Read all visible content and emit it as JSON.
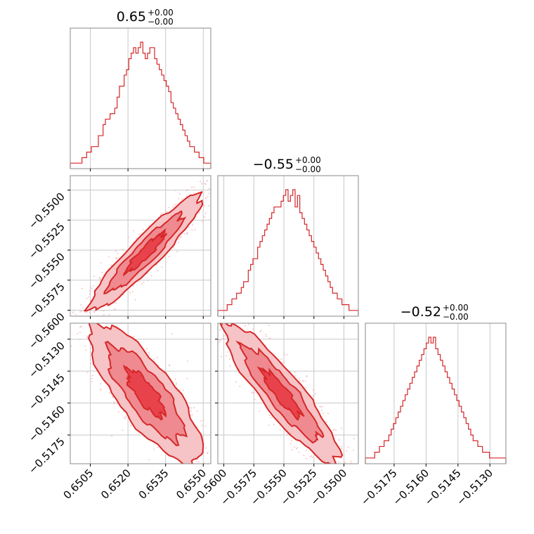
{
  "colors": {
    "series": "#d62728",
    "fill_dark": "#e8434d",
    "fill_mid": "#ee8a90",
    "fill_light": "#f6c3c6",
    "scatter": "#f4b7bb",
    "grid": "#c8c8c8",
    "frame": "#8a8a8a"
  },
  "chart_data": {
    "type": "corner",
    "parameters": [
      {
        "title": {
          "main": "0.65",
          "upper": "+0.00",
          "lower": "−0.00"
        },
        "range": [
          0.6497,
          0.6553
        ],
        "ticks": [
          0.6505,
          0.652,
          0.6535,
          0.655
        ],
        "tick_labels": [
          "0.6505",
          "0.6520",
          "0.6535",
          "0.6550"
        ],
        "hist": [
          1,
          1,
          1,
          1,
          1,
          2,
          2,
          3,
          3,
          4,
          4,
          4,
          6,
          6,
          8,
          9,
          9,
          10,
          10,
          11,
          13,
          15,
          15,
          17,
          18,
          20,
          21,
          22,
          21,
          22,
          23,
          21,
          20,
          21,
          22,
          22,
          20,
          19,
          18,
          17,
          16,
          15,
          14,
          12,
          11,
          10,
          9,
          8,
          7,
          6,
          5,
          4,
          4,
          3,
          3,
          2,
          2,
          1,
          1,
          1
        ]
      },
      {
        "title": {
          "main": "−0.55",
          "upper": "+0.00",
          "lower": "−0.00"
        },
        "range": [
          -0.5605,
          -0.5488
        ],
        "ticks": [
          -0.56,
          -0.5575,
          -0.555,
          -0.5525,
          -0.55
        ],
        "tick_labels": [
          "−0.5600",
          "−0.5575",
          "−0.5550",
          "−0.5525",
          "−0.5500"
        ],
        "hist": [
          1,
          1,
          1,
          1,
          2,
          2,
          3,
          3,
          4,
          4,
          5,
          6,
          6,
          8,
          9,
          10,
          10,
          12,
          13,
          14,
          15,
          16,
          17,
          18,
          19,
          19,
          19,
          20,
          21,
          22,
          20,
          21,
          22,
          19,
          21,
          18,
          17,
          16,
          15,
          14,
          13,
          12,
          11,
          10,
          9,
          8,
          7,
          6,
          5,
          4,
          4,
          3,
          3,
          2,
          2,
          2,
          1,
          1,
          1,
          1
        ]
      },
      {
        "title": {
          "main": "−0.52",
          "upper": "+0.00",
          "lower": "−0.00"
        },
        "range": [
          -0.51885,
          -0.51225
        ],
        "ticks": [
          -0.5175,
          -0.516,
          -0.5145,
          -0.513
        ],
        "tick_labels": [
          "−0.5175",
          "−0.5160",
          "−0.5145",
          "−0.5130"
        ],
        "hist": [
          1,
          1,
          1,
          1,
          2,
          2,
          3,
          3,
          4,
          4,
          5,
          6,
          7,
          8,
          9,
          10,
          11,
          12,
          13,
          14,
          15,
          16,
          17,
          18,
          19,
          20,
          21,
          22,
          21,
          22,
          20,
          19,
          18,
          17,
          16,
          15,
          14,
          13,
          12,
          11,
          10,
          9,
          8,
          7,
          6,
          5,
          4,
          4,
          3,
          3,
          2,
          2,
          2,
          1,
          1,
          1,
          1,
          1,
          1,
          1
        ]
      }
    ],
    "pairs": [
      {
        "x": 0,
        "y": 1,
        "correlation": 0.93,
        "mean": [
          0.6527,
          -0.5552
        ],
        "sd": [
          0.00075,
          0.0016
        ]
      },
      {
        "x": 0,
        "y": 2,
        "correlation": -0.8,
        "mean": [
          0.6527,
          -0.51555
        ],
        "sd": [
          0.00075,
          0.0011
        ]
      },
      {
        "x": 1,
        "y": 2,
        "correlation": -0.9,
        "mean": [
          -0.5552,
          -0.51555
        ],
        "sd": [
          0.0016,
          0.0011
        ]
      }
    ],
    "levels_sigma": [
      0.5,
      1.0,
      1.5
    ],
    "grid": true
  }
}
